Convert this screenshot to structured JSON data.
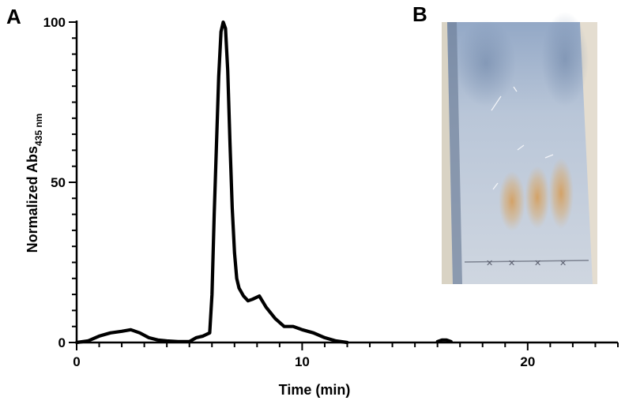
{
  "panels": {
    "a_label": "A",
    "b_label": "B"
  },
  "chart_data": {
    "type": "line",
    "title": "",
    "xlabel": "Time (min)",
    "ylabel": "Normalized Abs",
    "ylabel_subscript": "435 nm",
    "xlim": [
      0,
      24
    ],
    "ylim": [
      0,
      100
    ],
    "x_ticks": [
      0,
      10,
      20
    ],
    "y_ticks": [
      0,
      50,
      100
    ],
    "grid": false,
    "series": [
      {
        "color": "#000000",
        "segments": [
          {
            "x": [
              0.0,
              0.5,
              1.0,
              1.5,
              2.0,
              2.4,
              2.8,
              3.2,
              3.6,
              4.0,
              4.5,
              5.0,
              5.3,
              5.6,
              5.9,
              6.0,
              6.1,
              6.2,
              6.3,
              6.4,
              6.5,
              6.6,
              6.7,
              6.8,
              6.9,
              7.0,
              7.1,
              7.2,
              7.4,
              7.6,
              7.8,
              8.1,
              8.4,
              8.8,
              9.2,
              9.6,
              10.0,
              10.5,
              11.0,
              11.5,
              12.0
            ],
            "y": [
              0,
              0.5,
              2,
              3,
              3.5,
              4,
              3,
              1.5,
              0.8,
              0.5,
              0.3,
              0.3,
              1.5,
              2,
              3,
              15,
              40,
              62,
              83,
              97,
              100,
              98,
              85,
              62,
              42,
              28,
              20,
              17,
              14.5,
              13,
              13.5,
              14.5,
              11,
              7.5,
              5,
              5,
              4,
              3,
              1.5,
              0.5,
              0
            ]
          },
          {
            "x": [
              16.0,
              16.2,
              16.4,
              16.6
            ],
            "y": [
              0.3,
              0.8,
              0.8,
              0.3
            ]
          }
        ]
      }
    ]
  },
  "photo": {
    "description_colors": {
      "plate": "#b7c3d3",
      "background": "#d8d2c4",
      "spot": "#d2a163"
    }
  }
}
